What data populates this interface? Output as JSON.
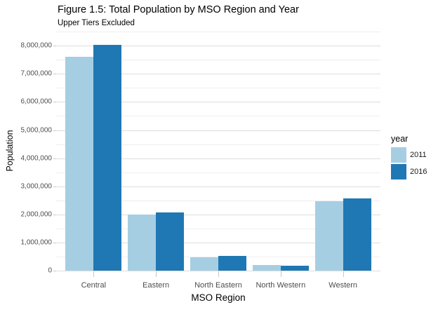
{
  "figure": {
    "title": "Figure 1.5: Total Population by MSO Region and Year",
    "subtitle": "Upper Tiers Excluded"
  },
  "chart_data": {
    "type": "bar",
    "title": "Figure 1.5: Total Population by MSO Region and Year",
    "subtitle": "Upper Tiers Excluded",
    "xlabel": "MSO Region",
    "ylabel": "Population",
    "categories": [
      "Central",
      "Eastern",
      "North Eastern",
      "North Western",
      "Western"
    ],
    "series": [
      {
        "name": "2011",
        "color": "#A6CEE3",
        "values": [
          7600000,
          2000000,
          470000,
          200000,
          2460000
        ]
      },
      {
        "name": "2016",
        "color": "#1F78B4",
        "values": [
          8020000,
          2080000,
          530000,
          180000,
          2570000
        ]
      }
    ],
    "ylim": [
      0,
      8530000
    ],
    "yticks": [
      0,
      1000000,
      2000000,
      3000000,
      4000000,
      5000000,
      6000000,
      7000000,
      8000000
    ],
    "ytick_labels": [
      "0",
      "1,000,000",
      "2,000,000",
      "3,000,000",
      "4,000,000",
      "5,000,000",
      "6,000,000",
      "7,000,000",
      "8,000,000"
    ],
    "minor_grid_step": 500000,
    "grid": true,
    "legend_title": "year",
    "legend_position": "right",
    "colors": {
      "grid_major": "#dddddd",
      "grid_minor": "#eeeeee",
      "tick_mark": "#c8c8c8",
      "axis_text": "#4d4d4d"
    }
  }
}
